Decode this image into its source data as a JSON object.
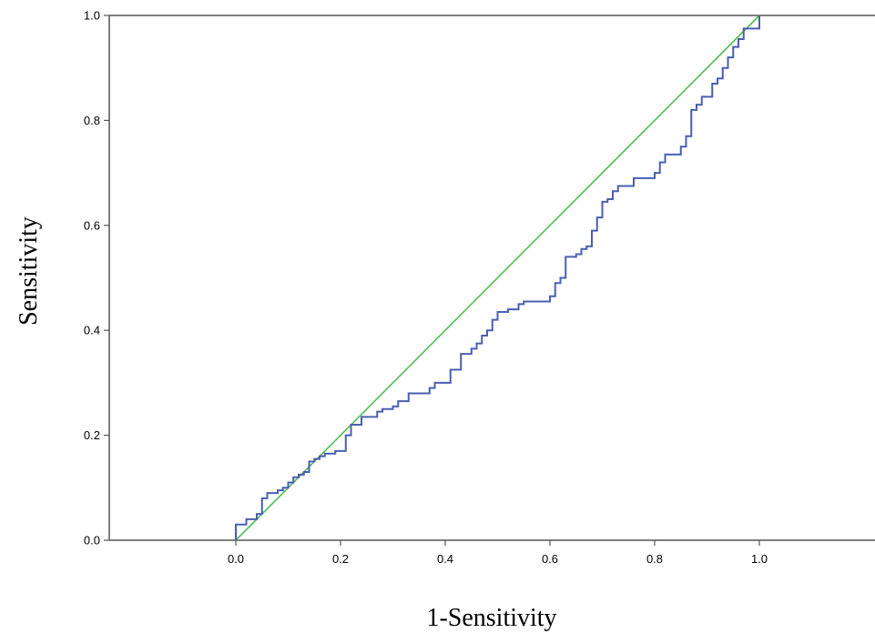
{
  "chart_data": {
    "type": "line",
    "title": "",
    "xlabel": "1-Sensitivity",
    "ylabel": "Sensitivity",
    "xlim": [
      0,
      1
    ],
    "ylim": [
      0,
      1
    ],
    "x_ticks": [
      "0.0",
      "0.2",
      "0.4",
      "0.6",
      "0.8",
      "1.0"
    ],
    "y_ticks": [
      "0.0",
      "0.2",
      "0.4",
      "0.6",
      "0.8",
      "1.0"
    ],
    "grid": false,
    "legend": "none",
    "colors": {
      "roc": "#4a5fb0",
      "reference": "#4fbf4f"
    },
    "series": [
      {
        "x": [
          0.0,
          0.0,
          0.01,
          0.02,
          0.02,
          0.04,
          0.04,
          0.05,
          0.06,
          0.07,
          0.08,
          0.09,
          0.1,
          0.11,
          0.12,
          0.13,
          0.14,
          0.15,
          0.16,
          0.17,
          0.19,
          0.21,
          0.21,
          0.22,
          0.22,
          0.23,
          0.24,
          0.25,
          0.27,
          0.28,
          0.3,
          0.31,
          0.33,
          0.34,
          0.36,
          0.37,
          0.38,
          0.4,
          0.41,
          0.43,
          0.43,
          0.44,
          0.45,
          0.46,
          0.47,
          0.48,
          0.49,
          0.5,
          0.52,
          0.54,
          0.55,
          0.57,
          0.6,
          0.61,
          0.62,
          0.63,
          0.65,
          0.66,
          0.67,
          0.68,
          0.69,
          0.7,
          0.71,
          0.72,
          0.73,
          0.74,
          0.76,
          0.77,
          0.8,
          0.81,
          0.82,
          0.83,
          0.85,
          0.86,
          0.87,
          0.88,
          0.89,
          0.91,
          0.92,
          0.93,
          0.94,
          0.95,
          0.96,
          0.97,
          0.98,
          1.0,
          1.0
        ],
        "y": [
          0.0,
          0.03,
          0.03,
          0.035,
          0.04,
          0.045,
          0.05,
          0.08,
          0.09,
          0.09,
          0.095,
          0.1,
          0.11,
          0.12,
          0.125,
          0.13,
          0.15,
          0.155,
          0.16,
          0.165,
          0.17,
          0.195,
          0.2,
          0.215,
          0.22,
          0.22,
          0.235,
          0.235,
          0.245,
          0.25,
          0.255,
          0.265,
          0.28,
          0.28,
          0.28,
          0.29,
          0.3,
          0.3,
          0.325,
          0.325,
          0.355,
          0.355,
          0.365,
          0.375,
          0.39,
          0.4,
          0.42,
          0.435,
          0.44,
          0.45,
          0.455,
          0.455,
          0.465,
          0.49,
          0.5,
          0.54,
          0.545,
          0.555,
          0.56,
          0.59,
          0.615,
          0.645,
          0.65,
          0.665,
          0.675,
          0.675,
          0.69,
          0.69,
          0.7,
          0.72,
          0.735,
          0.735,
          0.75,
          0.77,
          0.82,
          0.83,
          0.845,
          0.87,
          0.88,
          0.9,
          0.92,
          0.94,
          0.955,
          0.975,
          0.975,
          0.98,
          1.0
        ]
      },
      {
        "x": [
          0.0,
          1.0
        ],
        "y": [
          0.0,
          1.0
        ]
      }
    ]
  }
}
